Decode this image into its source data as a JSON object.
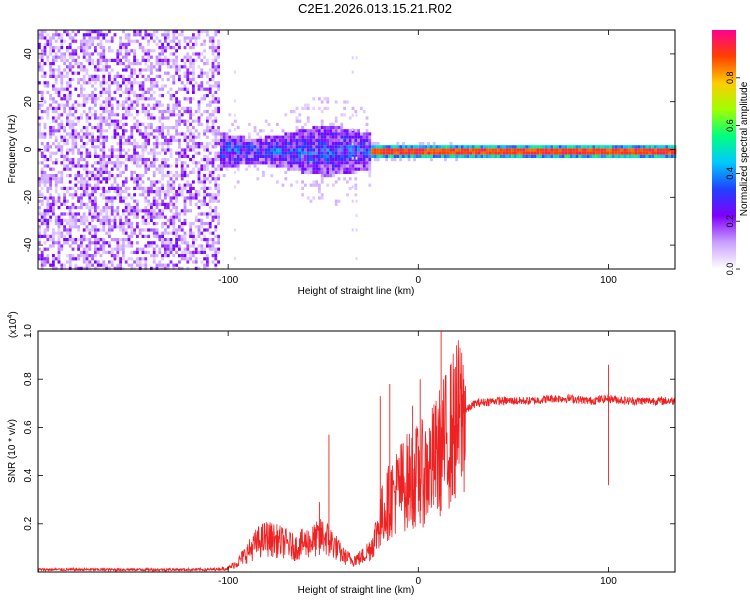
{
  "figure_title": "C2E1.2026.013.15.21.R02",
  "chart_data": [
    {
      "type": "heatmap",
      "title": "C2E1.2026.013.15.21.R02",
      "xlabel": "Height of straight line (km)",
      "ylabel": "Frequency (Hz)",
      "xlim": [
        -200,
        135
      ],
      "ylim": [
        -50,
        50
      ],
      "x_ticks": [
        -100,
        0,
        100
      ],
      "x_tick_labels": [
        "-100",
        "0",
        "100"
      ],
      "y_ticks": [
        -40,
        -20,
        0,
        20,
        40
      ],
      "y_tick_labels": [
        "-40",
        "-20",
        "0",
        "20",
        "40"
      ],
      "colorbar": {
        "label": "Normalized spectral amplitude",
        "range": [
          0,
          1
        ],
        "ticks": [
          0.0,
          0.2,
          0.4,
          0.6,
          0.8
        ],
        "tick_labels": [
          "0.0",
          "0.2",
          "0.4",
          "0.6",
          "0.8"
        ],
        "colors": [
          "#ffffff",
          "#c9a0ff",
          "#8000ff",
          "#2040ff",
          "#00c8ff",
          "#00ff80",
          "#a0ff00",
          "#ffcc00",
          "#ff4000",
          "#ff0090"
        ]
      },
      "regions": [
        {
          "name": "broadband noise",
          "x_range": [
            -200,
            -105
          ],
          "freq_range": [
            -50,
            50
          ],
          "amplitude": 0.15
        },
        {
          "name": "scattered signal",
          "x_range": [
            -105,
            -25
          ],
          "freq_center": 0,
          "freq_halfwidth": 8,
          "amplitude": 0.3
        },
        {
          "name": "narrow line",
          "x_range": [
            -25,
            135
          ],
          "freq_center": 0,
          "freq_halfwidth": 1,
          "amplitude": 0.95
        }
      ]
    },
    {
      "type": "line",
      "xlabel": "Height of straight line (km)",
      "ylabel": "SNR (10 * v/v)",
      "scale_note_base": "(x10",
      "scale_note_exp": "4",
      "scale_note_close": ")",
      "xlim": [
        -200,
        135
      ],
      "ylim": [
        0,
        1.0
      ],
      "x_ticks": [
        -100,
        0,
        100
      ],
      "x_tick_labels": [
        "-100",
        "0",
        "100"
      ],
      "y_ticks": [
        0.2,
        0.4,
        0.6,
        0.8,
        1.0
      ],
      "y_tick_labels": [
        "0.2",
        "0.4",
        "0.6",
        "0.8",
        "1.0"
      ],
      "color": "#ee2222",
      "series": [
        {
          "name": "SNR",
          "x": [
            -200,
            -110,
            -100,
            -95,
            -90,
            -85,
            -80,
            -75,
            -70,
            -65,
            -60,
            -55,
            -50,
            -45,
            -40,
            -35,
            -30,
            -25,
            -22,
            -20,
            -15,
            -10,
            -5,
            0,
            5,
            10,
            15,
            20,
            25,
            30,
            40,
            50,
            60,
            70,
            80,
            90,
            100,
            110,
            120,
            135
          ],
          "y": [
            0.01,
            0.01,
            0.015,
            0.04,
            0.08,
            0.12,
            0.14,
            0.13,
            0.12,
            0.1,
            0.12,
            0.13,
            0.15,
            0.12,
            0.07,
            0.05,
            0.06,
            0.1,
            0.16,
            0.22,
            0.3,
            0.35,
            0.38,
            0.4,
            0.42,
            0.48,
            0.55,
            0.62,
            0.67,
            0.7,
            0.71,
            0.71,
            0.71,
            0.72,
            0.72,
            0.71,
            0.72,
            0.71,
            0.71,
            0.71
          ]
        }
      ],
      "spikes": [
        {
          "x": -52,
          "y": 0.29
        },
        {
          "x": -47,
          "y": 0.57
        },
        {
          "x": -20,
          "y": 0.73
        },
        {
          "x": -15,
          "y": 0.78
        },
        {
          "x": -3,
          "y": 0.69
        },
        {
          "x": 1,
          "y": 0.8
        },
        {
          "x": 12,
          "y": 1.0
        },
        {
          "x": 100,
          "y": 0.86
        }
      ]
    }
  ]
}
